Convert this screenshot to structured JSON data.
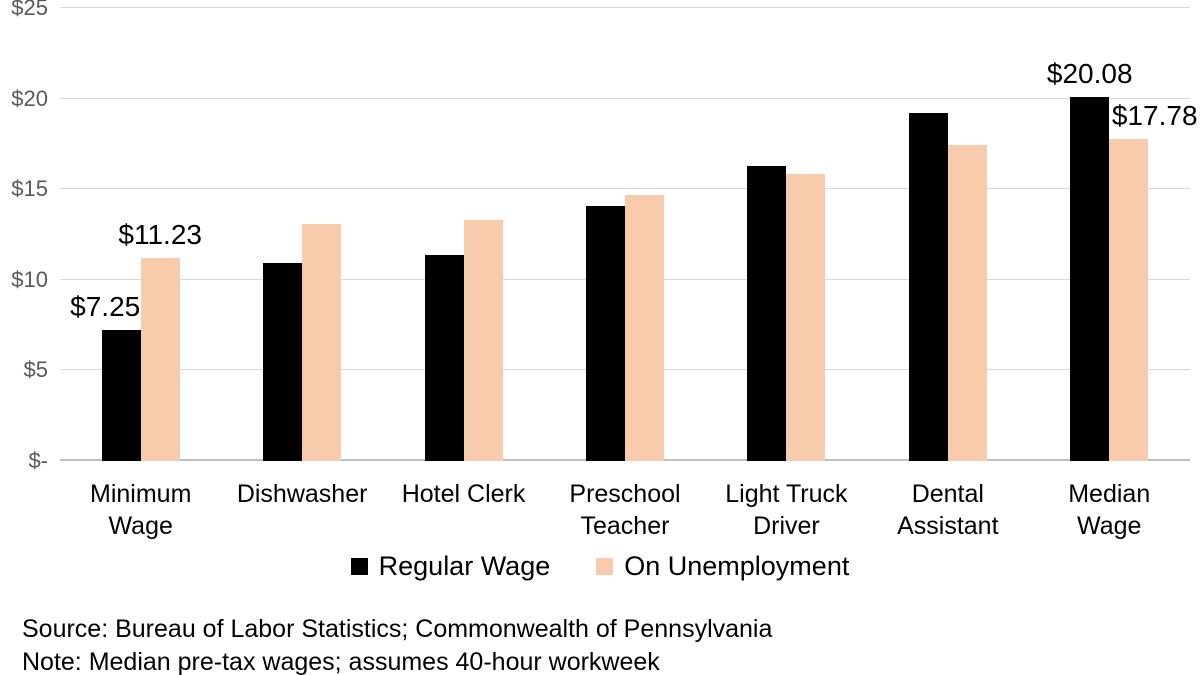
{
  "chart_data": {
    "type": "bar",
    "title": "",
    "xlabel": "",
    "ylabel": "",
    "ylim": [
      0,
      25
    ],
    "grid": true,
    "legend_position": "bottom",
    "y_ticks": [
      {
        "value": 0,
        "label": "$-"
      },
      {
        "value": 5,
        "label": "$5"
      },
      {
        "value": 10,
        "label": "$10"
      },
      {
        "value": 15,
        "label": "$15"
      },
      {
        "value": 20,
        "label": "$20"
      },
      {
        "value": 25,
        "label": "$25"
      }
    ],
    "series": [
      {
        "name": "Regular Wage",
        "color": "#000000"
      },
      {
        "name": "On Unemployment",
        "color": "#f8cbad"
      }
    ],
    "points": [
      {
        "category": "Minimum\nWage",
        "regular": 7.25,
        "unemployment": 11.23,
        "regular_label": "$7.25",
        "unemployment_label": "$11.23"
      },
      {
        "category": "Dishwasher",
        "regular": 10.95,
        "unemployment": 13.1
      },
      {
        "category": "Hotel Clerk",
        "regular": 11.35,
        "unemployment": 13.3
      },
      {
        "category": "Preschool\nTeacher",
        "regular": 14.1,
        "unemployment": 14.7
      },
      {
        "category": "Light Truck\nDriver",
        "regular": 16.3,
        "unemployment": 15.85
      },
      {
        "category": "Dental\nAssistant",
        "regular": 19.2,
        "unemployment": 17.45
      },
      {
        "category": "Median\nWage",
        "regular": 20.08,
        "unemployment": 17.78,
        "regular_label": "$20.08",
        "unemployment_label": "$17.78"
      }
    ]
  },
  "footer": {
    "source": "Source: Bureau of Labor Statistics; Commonwealth of Pennsylvania",
    "note": "Note: Median pre-tax wages; assumes 40-hour workweek"
  }
}
